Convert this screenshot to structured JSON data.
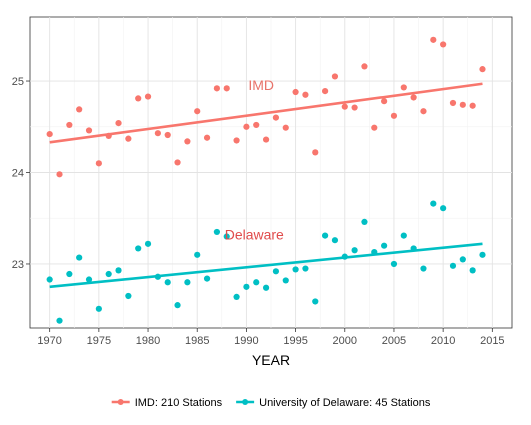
{
  "chart_data": {
    "type": "scatter",
    "xlabel": "YEAR",
    "ylabel": "",
    "xlim": [
      1968,
      2017
    ],
    "ylim": [
      22.3,
      25.7
    ],
    "xticks": [
      1970,
      1975,
      1980,
      1985,
      1990,
      1995,
      2000,
      2005,
      2010,
      2015
    ],
    "yticks": [
      23,
      24,
      25
    ],
    "grid": true,
    "legend_position": "bottom",
    "annotations": [
      {
        "text": "IMD",
        "x": 1991.5,
        "y": 24.9,
        "color": "#e8736a"
      },
      {
        "text": "Delaware",
        "x": 1990.8,
        "y": 23.27,
        "color": "#e04b4b"
      }
    ],
    "series": [
      {
        "name": "IMD: 210 Stations",
        "color": "#f8766d",
        "trend": {
          "x": [
            1970,
            2014
          ],
          "y": [
            24.33,
            24.97
          ]
        },
        "points": [
          [
            1970,
            24.42
          ],
          [
            1971,
            23.98
          ],
          [
            1972,
            24.52
          ],
          [
            1973,
            24.69
          ],
          [
            1974,
            24.46
          ],
          [
            1975,
            24.1
          ],
          [
            1976,
            24.4
          ],
          [
            1977,
            24.54
          ],
          [
            1978,
            24.37
          ],
          [
            1979,
            24.81
          ],
          [
            1980,
            24.83
          ],
          [
            1981,
            24.43
          ],
          [
            1982,
            24.41
          ],
          [
            1983,
            24.11
          ],
          [
            1984,
            24.34
          ],
          [
            1985,
            24.67
          ],
          [
            1986,
            24.38
          ],
          [
            1987,
            24.92
          ],
          [
            1988,
            24.92
          ],
          [
            1989,
            24.35
          ],
          [
            1990,
            24.5
          ],
          [
            1991,
            24.52
          ],
          [
            1992,
            24.36
          ],
          [
            1993,
            24.6
          ],
          [
            1994,
            24.49
          ],
          [
            1995,
            24.88
          ],
          [
            1996,
            24.85
          ],
          [
            1997,
            24.22
          ],
          [
            1998,
            24.89
          ],
          [
            1999,
            25.05
          ],
          [
            2000,
            24.72
          ],
          [
            2001,
            24.71
          ],
          [
            2002,
            25.16
          ],
          [
            2003,
            24.49
          ],
          [
            2004,
            24.78
          ],
          [
            2005,
            24.62
          ],
          [
            2006,
            24.93
          ],
          [
            2007,
            24.82
          ],
          [
            2008,
            24.67
          ],
          [
            2009,
            25.45
          ],
          [
            2010,
            25.4
          ],
          [
            2011,
            24.76
          ],
          [
            2012,
            24.74
          ],
          [
            2013,
            24.73
          ],
          [
            2014,
            25.13
          ]
        ]
      },
      {
        "name": "University of Delaware: 45 Stations",
        "color": "#00bfc4",
        "trend": {
          "x": [
            1970,
            2014
          ],
          "y": [
            22.75,
            23.22
          ]
        },
        "points": [
          [
            1970,
            22.83
          ],
          [
            1971,
            22.38
          ],
          [
            1972,
            22.89
          ],
          [
            1973,
            23.07
          ],
          [
            1974,
            22.83
          ],
          [
            1975,
            22.51
          ],
          [
            1976,
            22.89
          ],
          [
            1977,
            22.93
          ],
          [
            1978,
            22.65
          ],
          [
            1979,
            23.17
          ],
          [
            1980,
            23.22
          ],
          [
            1981,
            22.86
          ],
          [
            1982,
            22.8
          ],
          [
            1983,
            22.55
          ],
          [
            1984,
            22.8
          ],
          [
            1985,
            23.1
          ],
          [
            1986,
            22.84
          ],
          [
            1987,
            23.35
          ],
          [
            1988,
            23.3
          ],
          [
            1989,
            22.64
          ],
          [
            1990,
            22.75
          ],
          [
            1991,
            22.8
          ],
          [
            1992,
            22.74
          ],
          [
            1993,
            22.92
          ],
          [
            1994,
            22.82
          ],
          [
            1995,
            22.94
          ],
          [
            1996,
            22.95
          ],
          [
            1997,
            22.59
          ],
          [
            1998,
            23.31
          ],
          [
            1999,
            23.26
          ],
          [
            2000,
            23.08
          ],
          [
            2001,
            23.15
          ],
          [
            2002,
            23.46
          ],
          [
            2003,
            23.13
          ],
          [
            2004,
            23.2
          ],
          [
            2005,
            23.0
          ],
          [
            2006,
            23.31
          ],
          [
            2007,
            23.17
          ],
          [
            2008,
            22.95
          ],
          [
            2009,
            23.66
          ],
          [
            2010,
            23.61
          ],
          [
            2011,
            22.98
          ],
          [
            2012,
            23.05
          ],
          [
            2013,
            22.93
          ],
          [
            2014,
            23.1
          ]
        ]
      }
    ]
  }
}
